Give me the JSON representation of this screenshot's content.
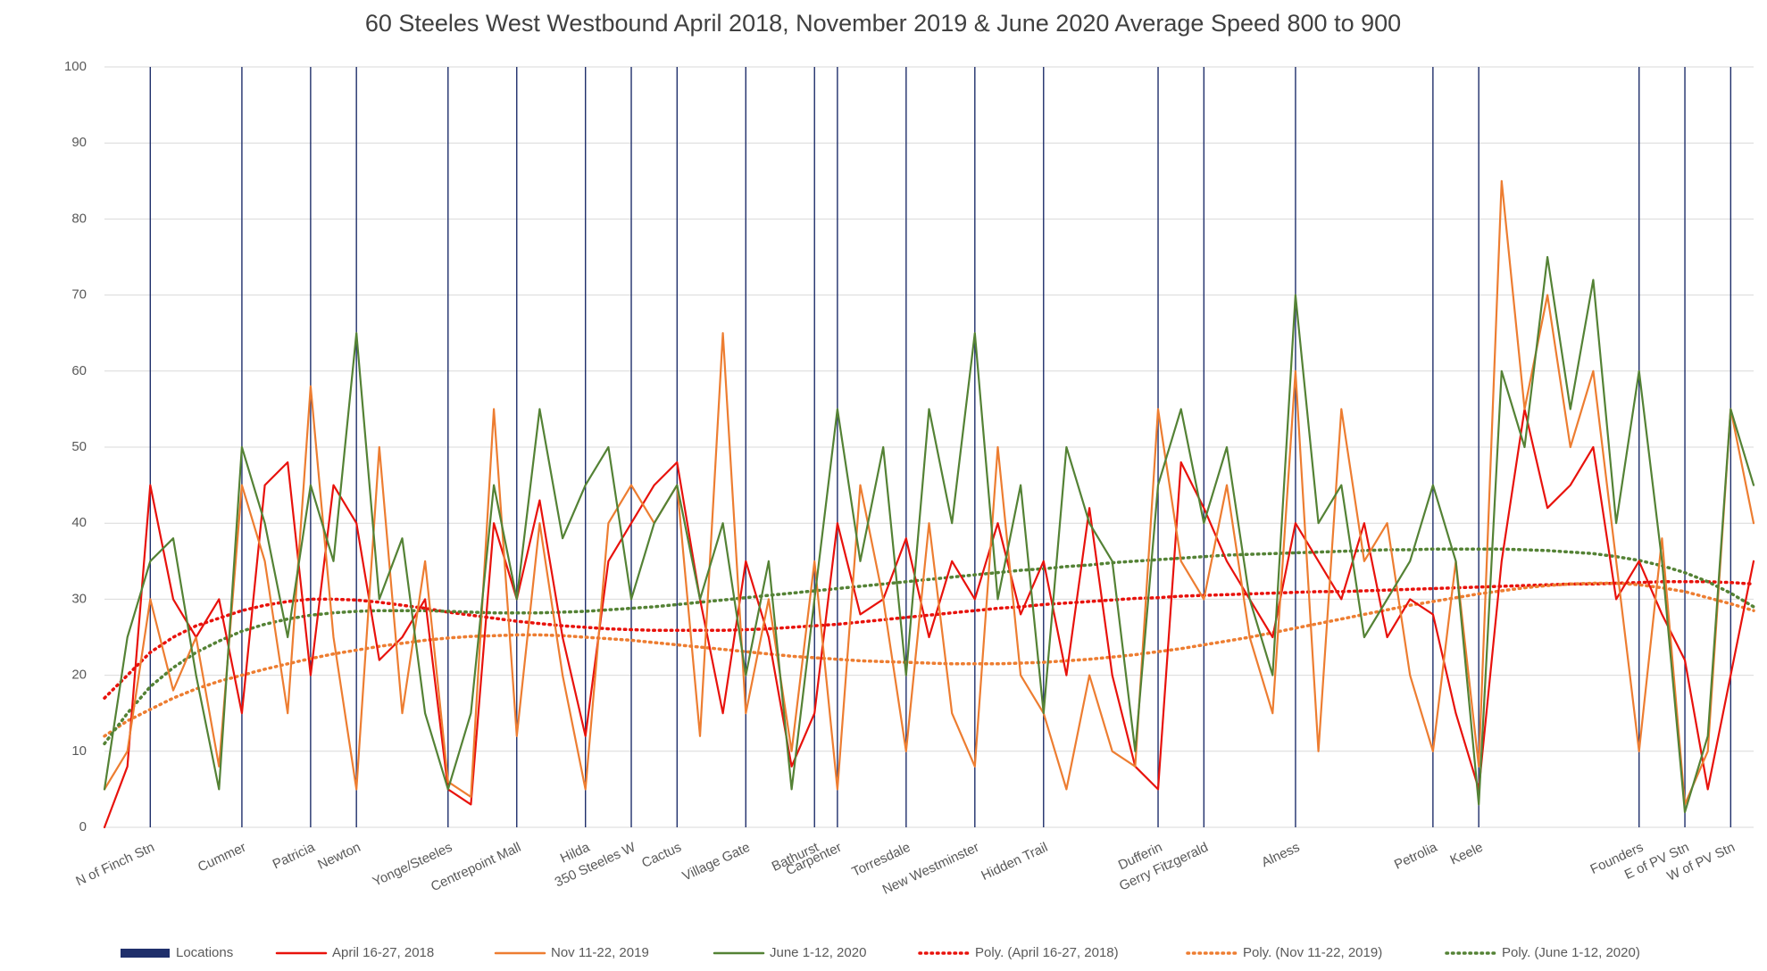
{
  "chart_data": {
    "type": "line",
    "title": "60 Steeles West Westbound April 2018, November 2019 & June 2020 Average Speed 800 to 900",
    "categories": [
      null,
      null,
      "N of Finch Stn",
      null,
      null,
      null,
      "Cummer",
      null,
      null,
      "Patricia",
      null,
      "Newton",
      null,
      null,
      null,
      "Yonge/Steeles",
      null,
      null,
      "Centrepoint Mall",
      null,
      null,
      "Hilda",
      null,
      "350 Steeles W",
      null,
      "Cactus",
      null,
      null,
      "Village Gate",
      null,
      null,
      "Bathurst",
      "Carpenter",
      null,
      null,
      "Torresdale",
      null,
      null,
      "New Westminster",
      null,
      null,
      "Hidden Trail",
      null,
      null,
      null,
      null,
      "Dufferin",
      null,
      "Gerry Fitzgerald",
      null,
      null,
      null,
      "Alness",
      null,
      null,
      null,
      null,
      null,
      "Petrolia",
      null,
      "Keele",
      null,
      null,
      null,
      null,
      null,
      null,
      "Founders",
      null,
      "E of PV Stn",
      null,
      "W of PV Stn",
      null
    ],
    "ylim": [
      0,
      100
    ],
    "yticks": [
      0,
      10,
      20,
      30,
      40,
      50,
      60,
      70,
      80,
      90,
      100
    ],
    "grid": true,
    "legend": "bottom",
    "series": [
      {
        "name": "Locations",
        "color": "#1f2f6b",
        "style": "bar",
        "values": [
          null,
          null,
          100,
          null,
          null,
          null,
          100,
          null,
          null,
          100,
          null,
          100,
          null,
          null,
          null,
          100,
          null,
          null,
          100,
          null,
          null,
          100,
          null,
          100,
          null,
          100,
          null,
          null,
          100,
          null,
          null,
          100,
          100,
          null,
          null,
          100,
          null,
          null,
          100,
          null,
          null,
          100,
          null,
          null,
          null,
          null,
          100,
          null,
          100,
          null,
          null,
          null,
          100,
          null,
          null,
          null,
          null,
          null,
          100,
          null,
          100,
          null,
          null,
          null,
          null,
          null,
          null,
          100,
          null,
          100,
          null,
          100,
          null
        ]
      },
      {
        "name": "April 16-27, 2018",
        "color": "#e8120c",
        "style": "solid",
        "values": [
          0,
          8,
          45,
          30,
          25,
          30,
          15,
          45,
          48,
          20,
          45,
          40,
          22,
          25,
          30,
          5,
          3,
          40,
          30,
          43,
          25,
          12,
          35,
          40,
          45,
          48,
          30,
          15,
          35,
          25,
          8,
          15,
          40,
          28,
          30,
          38,
          25,
          35,
          30,
          40,
          28,
          35,
          20,
          42,
          20,
          8,
          5,
          48,
          42,
          35,
          30,
          25,
          40,
          35,
          30,
          40,
          25,
          30,
          28,
          15,
          5,
          35,
          55,
          42,
          45,
          50,
          30,
          35,
          28,
          22,
          5,
          20,
          35
        ]
      },
      {
        "name": "Nov 11-22, 2019",
        "color": "#ed7d31",
        "style": "solid",
        "values": [
          5,
          10,
          30,
          18,
          25,
          8,
          45,
          35,
          15,
          58,
          25,
          5,
          50,
          15,
          35,
          6,
          4,
          55,
          12,
          40,
          20,
          5,
          40,
          45,
          40,
          45,
          12,
          65,
          15,
          30,
          10,
          35,
          5,
          45,
          30,
          10,
          40,
          15,
          8,
          50,
          20,
          15,
          5,
          20,
          10,
          8,
          55,
          35,
          30,
          45,
          25,
          15,
          60,
          10,
          55,
          35,
          40,
          20,
          10,
          35,
          8,
          85,
          55,
          70,
          50,
          60,
          35,
          10,
          38,
          3,
          10,
          55,
          40
        ]
      },
      {
        "name": "June 1-12, 2020",
        "color": "#548235",
        "style": "solid",
        "values": [
          5,
          25,
          35,
          38,
          20,
          5,
          50,
          40,
          25,
          45,
          35,
          65,
          30,
          38,
          15,
          5,
          15,
          45,
          30,
          55,
          38,
          45,
          50,
          30,
          40,
          45,
          30,
          40,
          20,
          35,
          5,
          30,
          55,
          35,
          50,
          20,
          55,
          40,
          65,
          30,
          45,
          15,
          50,
          40,
          35,
          10,
          45,
          55,
          40,
          50,
          30,
          20,
          70,
          40,
          45,
          25,
          30,
          35,
          45,
          35,
          3,
          60,
          50,
          75,
          55,
          72,
          40,
          60,
          35,
          2,
          12,
          55,
          45
        ]
      },
      {
        "name": "Poly. (April 16-27, 2018)",
        "color": "#e8120c",
        "style": "dotted",
        "values": [
          17,
          20,
          23,
          25,
          26.5,
          27.5,
          28.5,
          29.2,
          29.7,
          30,
          30,
          29.9,
          29.6,
          29.2,
          28.8,
          28.3,
          27.9,
          27.5,
          27.1,
          26.8,
          26.5,
          26.3,
          26.1,
          26,
          25.9,
          25.9,
          25.9,
          25.9,
          26,
          26.1,
          26.3,
          26.5,
          26.7,
          27,
          27.3,
          27.6,
          27.9,
          28.2,
          28.5,
          28.8,
          29,
          29.3,
          29.5,
          29.7,
          29.9,
          30.1,
          30.2,
          30.4,
          30.5,
          30.6,
          30.7,
          30.8,
          30.9,
          31,
          31,
          31.1,
          31.2,
          31.3,
          31.4,
          31.5,
          31.6,
          31.7,
          31.8,
          31.9,
          32,
          32,
          32.1,
          32.2,
          32.3,
          32.3,
          32.3,
          32.2,
          32
        ]
      },
      {
        "name": "Poly. (Nov 11-22, 2019)",
        "color": "#ed7d31",
        "style": "dotted",
        "values": [
          12,
          14,
          15.5,
          17,
          18.2,
          19.2,
          20,
          20.8,
          21.5,
          22.2,
          22.8,
          23.3,
          23.8,
          24.2,
          24.6,
          24.9,
          25.1,
          25.2,
          25.3,
          25.3,
          25.2,
          25,
          24.8,
          24.6,
          24.3,
          24,
          23.7,
          23.4,
          23.1,
          22.8,
          22.5,
          22.3,
          22.1,
          21.9,
          21.8,
          21.7,
          21.6,
          21.5,
          21.5,
          21.5,
          21.6,
          21.7,
          21.9,
          22.1,
          22.4,
          22.7,
          23.1,
          23.5,
          24,
          24.5,
          25,
          25.6,
          26.2,
          26.8,
          27.4,
          28,
          28.6,
          29.2,
          29.7,
          30.2,
          30.7,
          31.1,
          31.5,
          31.8,
          32,
          32.1,
          32.1,
          31.9,
          31.5,
          31,
          30.2,
          29.4,
          28.5
        ]
      },
      {
        "name": "Poly. (June 1-12, 2020)",
        "color": "#548235",
        "style": "dotted",
        "values": [
          11,
          15,
          18.5,
          21,
          23,
          24.5,
          25.8,
          26.7,
          27.4,
          27.9,
          28.2,
          28.4,
          28.5,
          28.5,
          28.5,
          28.4,
          28.3,
          28.2,
          28.2,
          28.2,
          28.3,
          28.4,
          28.6,
          28.8,
          29,
          29.3,
          29.6,
          29.9,
          30.2,
          30.5,
          30.8,
          31.1,
          31.4,
          31.7,
          32,
          32.3,
          32.6,
          32.9,
          33.2,
          33.5,
          33.8,
          34,
          34.3,
          34.5,
          34.8,
          35,
          35.2,
          35.4,
          35.6,
          35.8,
          35.9,
          36,
          36.1,
          36.2,
          36.3,
          36.4,
          36.5,
          36.5,
          36.6,
          36.6,
          36.6,
          36.6,
          36.5,
          36.4,
          36.2,
          36,
          35.6,
          35.1,
          34.4,
          33.5,
          32.3,
          30.8,
          29
        ]
      }
    ]
  }
}
